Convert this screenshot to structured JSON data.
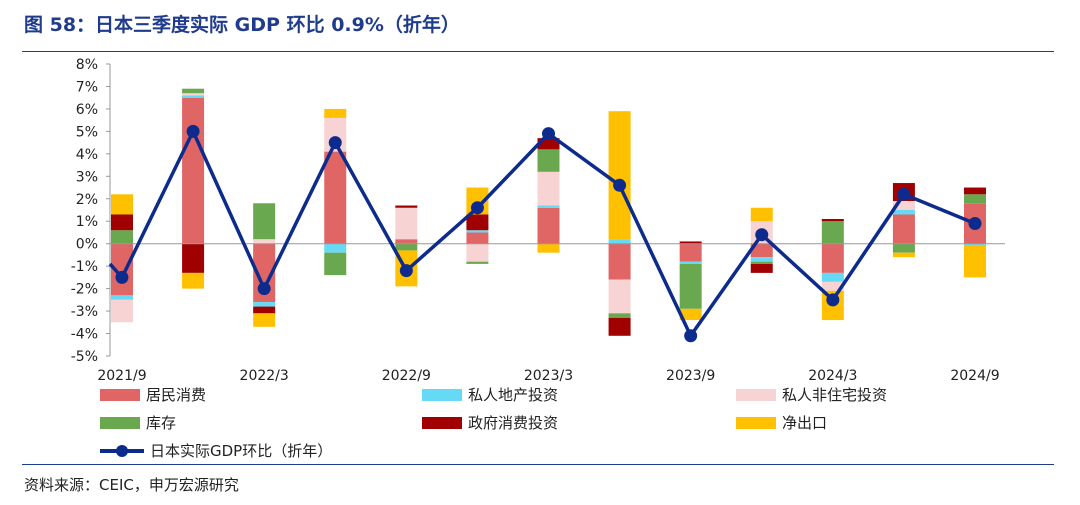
{
  "title": "图 58：日本三季度实际 GDP 环比 0.9%（折年）",
  "source": "资料来源：CEIC，申万宏源研究",
  "colors": {
    "title": "#1f3b8c",
    "consumption": "#e06666",
    "private_real_estate": "#66d9f5",
    "private_non_residential": "#f8d3d3",
    "inventory": "#6aa84f",
    "gov_consumption_investment": "#a00000",
    "net_exports": "#ffc000",
    "gdp_line": "#0d2b8c"
  },
  "chart_data": {
    "type": "bar",
    "stacked": true,
    "quarters": [
      "2021/9",
      "2021/12",
      "2022/3",
      "2022/6",
      "2022/9",
      "2022/12",
      "2023/3",
      "2023/6",
      "2023/9",
      "2023/12",
      "2024/3",
      "2024/6",
      "2024/9"
    ],
    "x_tick_labels": [
      "2021/9",
      "2022/3",
      "2022/9",
      "2023/3",
      "2023/9",
      "2024/3",
      "2024/9"
    ],
    "y_ticks": [
      "-5%",
      "-4%",
      "-3%",
      "-2%",
      "-1%",
      "0%",
      "1%",
      "2%",
      "3%",
      "4%",
      "5%",
      "6%",
      "7%",
      "8%"
    ],
    "ylim": [
      -5,
      8
    ],
    "unit": "%",
    "series": [
      {
        "name": "居民消费",
        "color_key": "consumption",
        "values": [
          -2.3,
          6.5,
          -2.6,
          4.1,
          0.2,
          0.5,
          1.6,
          -1.6,
          -0.8,
          -0.6,
          -1.3,
          1.3,
          1.8
        ]
      },
      {
        "name": "私人地产投资",
        "color_key": "private_real_estate",
        "values": [
          -0.2,
          0.1,
          -0.2,
          -0.4,
          0.0,
          0.1,
          0.1,
          0.2,
          -0.1,
          -0.2,
          -0.4,
          0.2,
          -0.1
        ]
      },
      {
        "name": "私人非住宅投资",
        "color_key": "private_non_residential",
        "values": [
          -1.0,
          0.1,
          0.2,
          1.5,
          1.4,
          -0.8,
          1.5,
          -1.5,
          0.0,
          1.0,
          -0.4,
          0.4,
          0.0
        ]
      },
      {
        "name": "库存",
        "color_key": "inventory",
        "values": [
          0.6,
          0.2,
          1.6,
          -1.0,
          -0.3,
          -0.1,
          1.0,
          -0.2,
          -2.0,
          -0.1,
          1.0,
          -0.4,
          0.4
        ]
      },
      {
        "name": "政府消费投资",
        "color_key": "gov_consumption_investment",
        "values": [
          0.7,
          -1.3,
          -0.3,
          0.0,
          0.1,
          0.7,
          0.5,
          -0.8,
          0.1,
          -0.4,
          0.1,
          0.8,
          0.3
        ]
      },
      {
        "name": "净出口",
        "color_key": "net_exports",
        "values": [
          0.9,
          -0.7,
          -0.6,
          0.4,
          -1.6,
          1.2,
          -0.4,
          5.7,
          -0.5,
          0.6,
          -1.3,
          -0.2,
          -1.4
        ]
      }
    ],
    "line": {
      "name": "日本实际GDP环比（折年）",
      "color_key": "gdp_line",
      "values": [
        -1.5,
        5.0,
        -2.0,
        4.5,
        -1.2,
        1.6,
        4.9,
        2.6,
        -4.1,
        0.4,
        -2.5,
        2.2,
        0.9
      ]
    },
    "legend": [
      {
        "label": "居民消费",
        "kind": "bar",
        "color_key": "consumption"
      },
      {
        "label": "私人地产投资",
        "kind": "bar",
        "color_key": "private_real_estate"
      },
      {
        "label": "私人非住宅投资",
        "kind": "bar",
        "color_key": "private_non_residential"
      },
      {
        "label": "库存",
        "kind": "bar",
        "color_key": "inventory"
      },
      {
        "label": "政府消费投资",
        "kind": "bar",
        "color_key": "gov_consumption_investment"
      },
      {
        "label": "净出口",
        "kind": "bar",
        "color_key": "net_exports"
      },
      {
        "label": "日本实际GDP环比（折年）",
        "kind": "line",
        "color_key": "gdp_line"
      }
    ],
    "legend_position": "bottom",
    "grid": false
  }
}
